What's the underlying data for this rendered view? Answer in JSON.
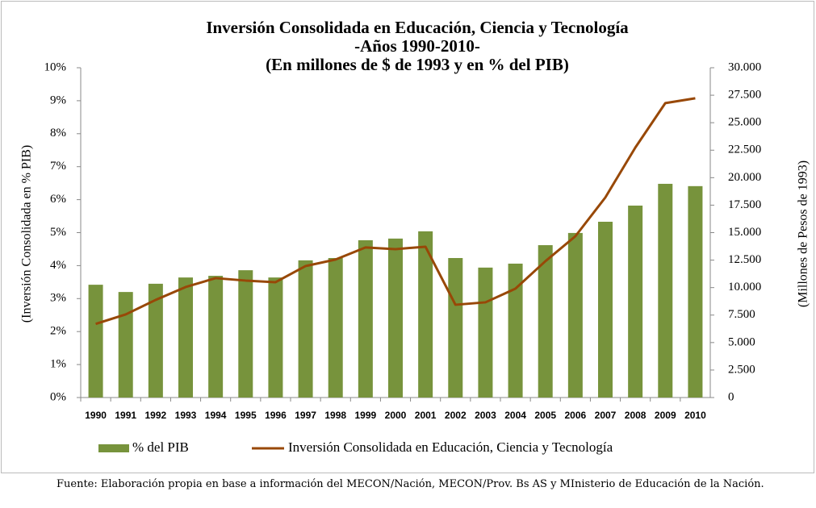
{
  "chart_data": {
    "type": "bar-line",
    "title": [
      "Inversión Consolidada en Educación, Ciencia y Tecnología",
      "-Años 1990-2010-",
      "(En millones de $ de 1993 y en % del PIB)"
    ],
    "y_label": "(Inversión Consolidada en % PIB)",
    "y2_label": "(Millones de Pesos de 1993)",
    "categories": [
      "1990",
      "1991",
      "1992",
      "1993",
      "1994",
      "1995",
      "1996",
      "1997",
      "1998",
      "1999",
      "2000",
      "2001",
      "2002",
      "2003",
      "2004",
      "2005",
      "2006",
      "2007",
      "2008",
      "2009",
      "2010"
    ],
    "series": [
      {
        "name": "% del PIB",
        "type": "bar",
        "color": "#77933c",
        "values": [
          3.42,
          3.2,
          3.45,
          3.64,
          3.69,
          3.86,
          3.64,
          4.16,
          4.23,
          4.77,
          4.82,
          5.04,
          4.23,
          3.94,
          4.06,
          4.62,
          4.99,
          5.33,
          5.82,
          6.48,
          6.41
        ]
      },
      {
        "name": "Inversión Consolidada en Educación, Ciencia y Tecnología",
        "type": "line",
        "axis": "y2",
        "color": "#984807",
        "values": [
          6700,
          7560,
          8880,
          10050,
          10860,
          10640,
          10490,
          11960,
          12550,
          13650,
          13500,
          13720,
          8440,
          8660,
          9900,
          12400,
          14670,
          18200,
          22740,
          26780,
          27220
        ]
      }
    ],
    "ylim": [
      0,
      10
    ],
    "yticks": [
      {
        "value": 0,
        "label": "0%"
      },
      {
        "value": 1,
        "label": "1%"
      },
      {
        "value": 2,
        "label": "2%"
      },
      {
        "value": 3,
        "label": "3%"
      },
      {
        "value": 4,
        "label": "4%"
      },
      {
        "value": 5,
        "label": "5%"
      },
      {
        "value": 6,
        "label": "6%"
      },
      {
        "value": 7,
        "label": "7%"
      },
      {
        "value": 8,
        "label": "8%"
      },
      {
        "value": 9,
        "label": "9%"
      },
      {
        "value": 10,
        "label": "10%"
      }
    ],
    "y2lim": [
      0,
      30000
    ],
    "y2ticks": [
      0,
      {
        "value": 2500,
        "label": "2.500"
      },
      {
        "value": 5000,
        "label": "5.000"
      },
      {
        "value": 7500,
        "label": "7.500"
      },
      {
        "value": 10000,
        "label": "10.000"
      },
      {
        "value": 12500,
        "label": "12.500"
      },
      {
        "value": 15000,
        "label": "15.000"
      },
      {
        "value": 17500,
        "label": "17.500"
      },
      {
        "value": 20000,
        "label": "20.000"
      },
      {
        "value": 22500,
        "label": "22.500"
      },
      {
        "value": 25000,
        "label": "25.000"
      },
      {
        "value": 27500,
        "label": "27.500"
      },
      {
        "value": 30000,
        "label": "30.000"
      }
    ],
    "grid": false,
    "source": "Fuente: Elaboración propia en base a información del MECON/Nación, MECON/Prov. Bs AS y MInisterio de Educación de la Nación."
  }
}
